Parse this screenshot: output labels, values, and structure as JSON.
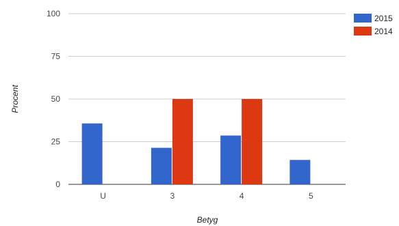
{
  "chart_data": {
    "type": "bar",
    "title": "",
    "xlabel": "Betyg",
    "ylabel": "Procent",
    "categories": [
      "U",
      "3",
      "4",
      "5"
    ],
    "series": [
      {
        "name": "2015",
        "color": "#3366cc",
        "values": [
          35.7,
          21.4,
          28.6,
          14.3
        ]
      },
      {
        "name": "2014",
        "color": "#dc3912",
        "values": [
          0,
          50,
          50,
          0
        ]
      }
    ],
    "ylim": [
      0,
      100
    ],
    "yticks": [
      0,
      25,
      50,
      75,
      100
    ],
    "grid": true,
    "legend_position": "right"
  }
}
